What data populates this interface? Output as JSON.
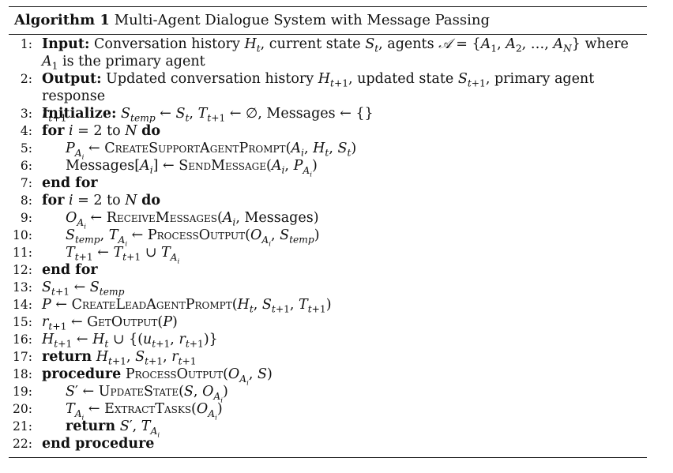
{
  "algorithm": {
    "label": "Algorithm 1",
    "title": "Multi-Agent Dialogue System with Message Passing"
  },
  "lines": {
    "l1": {
      "num": "1:",
      "kw": "Input:",
      "text1": "Conversation history ",
      "text2": ", current state ",
      "text3": ", agents ",
      "text4": " where",
      "text5": " is the primary agent"
    },
    "l2": {
      "num": "2:",
      "kw": "Output:",
      "text1": "Updated conversation history ",
      "text2": ", updated state ",
      "text3": ", primary agent response"
    },
    "l3": {
      "num": "3:",
      "kw": "Initialize:",
      "text1": ", Messages ← {}"
    },
    "l4": {
      "num": "4:",
      "kw": "for",
      "kw2": "do",
      "text1": " = 2 to "
    },
    "l5": {
      "num": "5:",
      "fn": "CreateSupportAgentPrompt"
    },
    "l6": {
      "num": "6:",
      "text1": "Messages[",
      "fn": "SendMessage"
    },
    "l7": {
      "num": "7:",
      "kw": "end for"
    },
    "l8": {
      "num": "8:",
      "kw": "for",
      "kw2": "do",
      "text1": " = 2 to "
    },
    "l9": {
      "num": "9:",
      "fn": "ReceiveMessages",
      "text1": "Messages)"
    },
    "l10": {
      "num": "10:",
      "fn": "ProcessOutput"
    },
    "l11": {
      "num": "11:"
    },
    "l12": {
      "num": "12:",
      "kw": "end for"
    },
    "l13": {
      "num": "13:"
    },
    "l14": {
      "num": "14:",
      "fn": "CreateLeadAgentPrompt"
    },
    "l15": {
      "num": "15:",
      "fn": "GetOutput"
    },
    "l16": {
      "num": "16:"
    },
    "l17": {
      "num": "17:",
      "kw": "return"
    },
    "l18": {
      "num": "18:",
      "kw": "procedure",
      "fn": "ProcessOutput"
    },
    "l19": {
      "num": "19:",
      "fn": "UpdateState"
    },
    "l20": {
      "num": "20:",
      "fn": "ExtractTasks"
    },
    "l21": {
      "num": "21:",
      "kw": "return"
    },
    "l22": {
      "num": "22:",
      "kw": "end procedure"
    }
  }
}
